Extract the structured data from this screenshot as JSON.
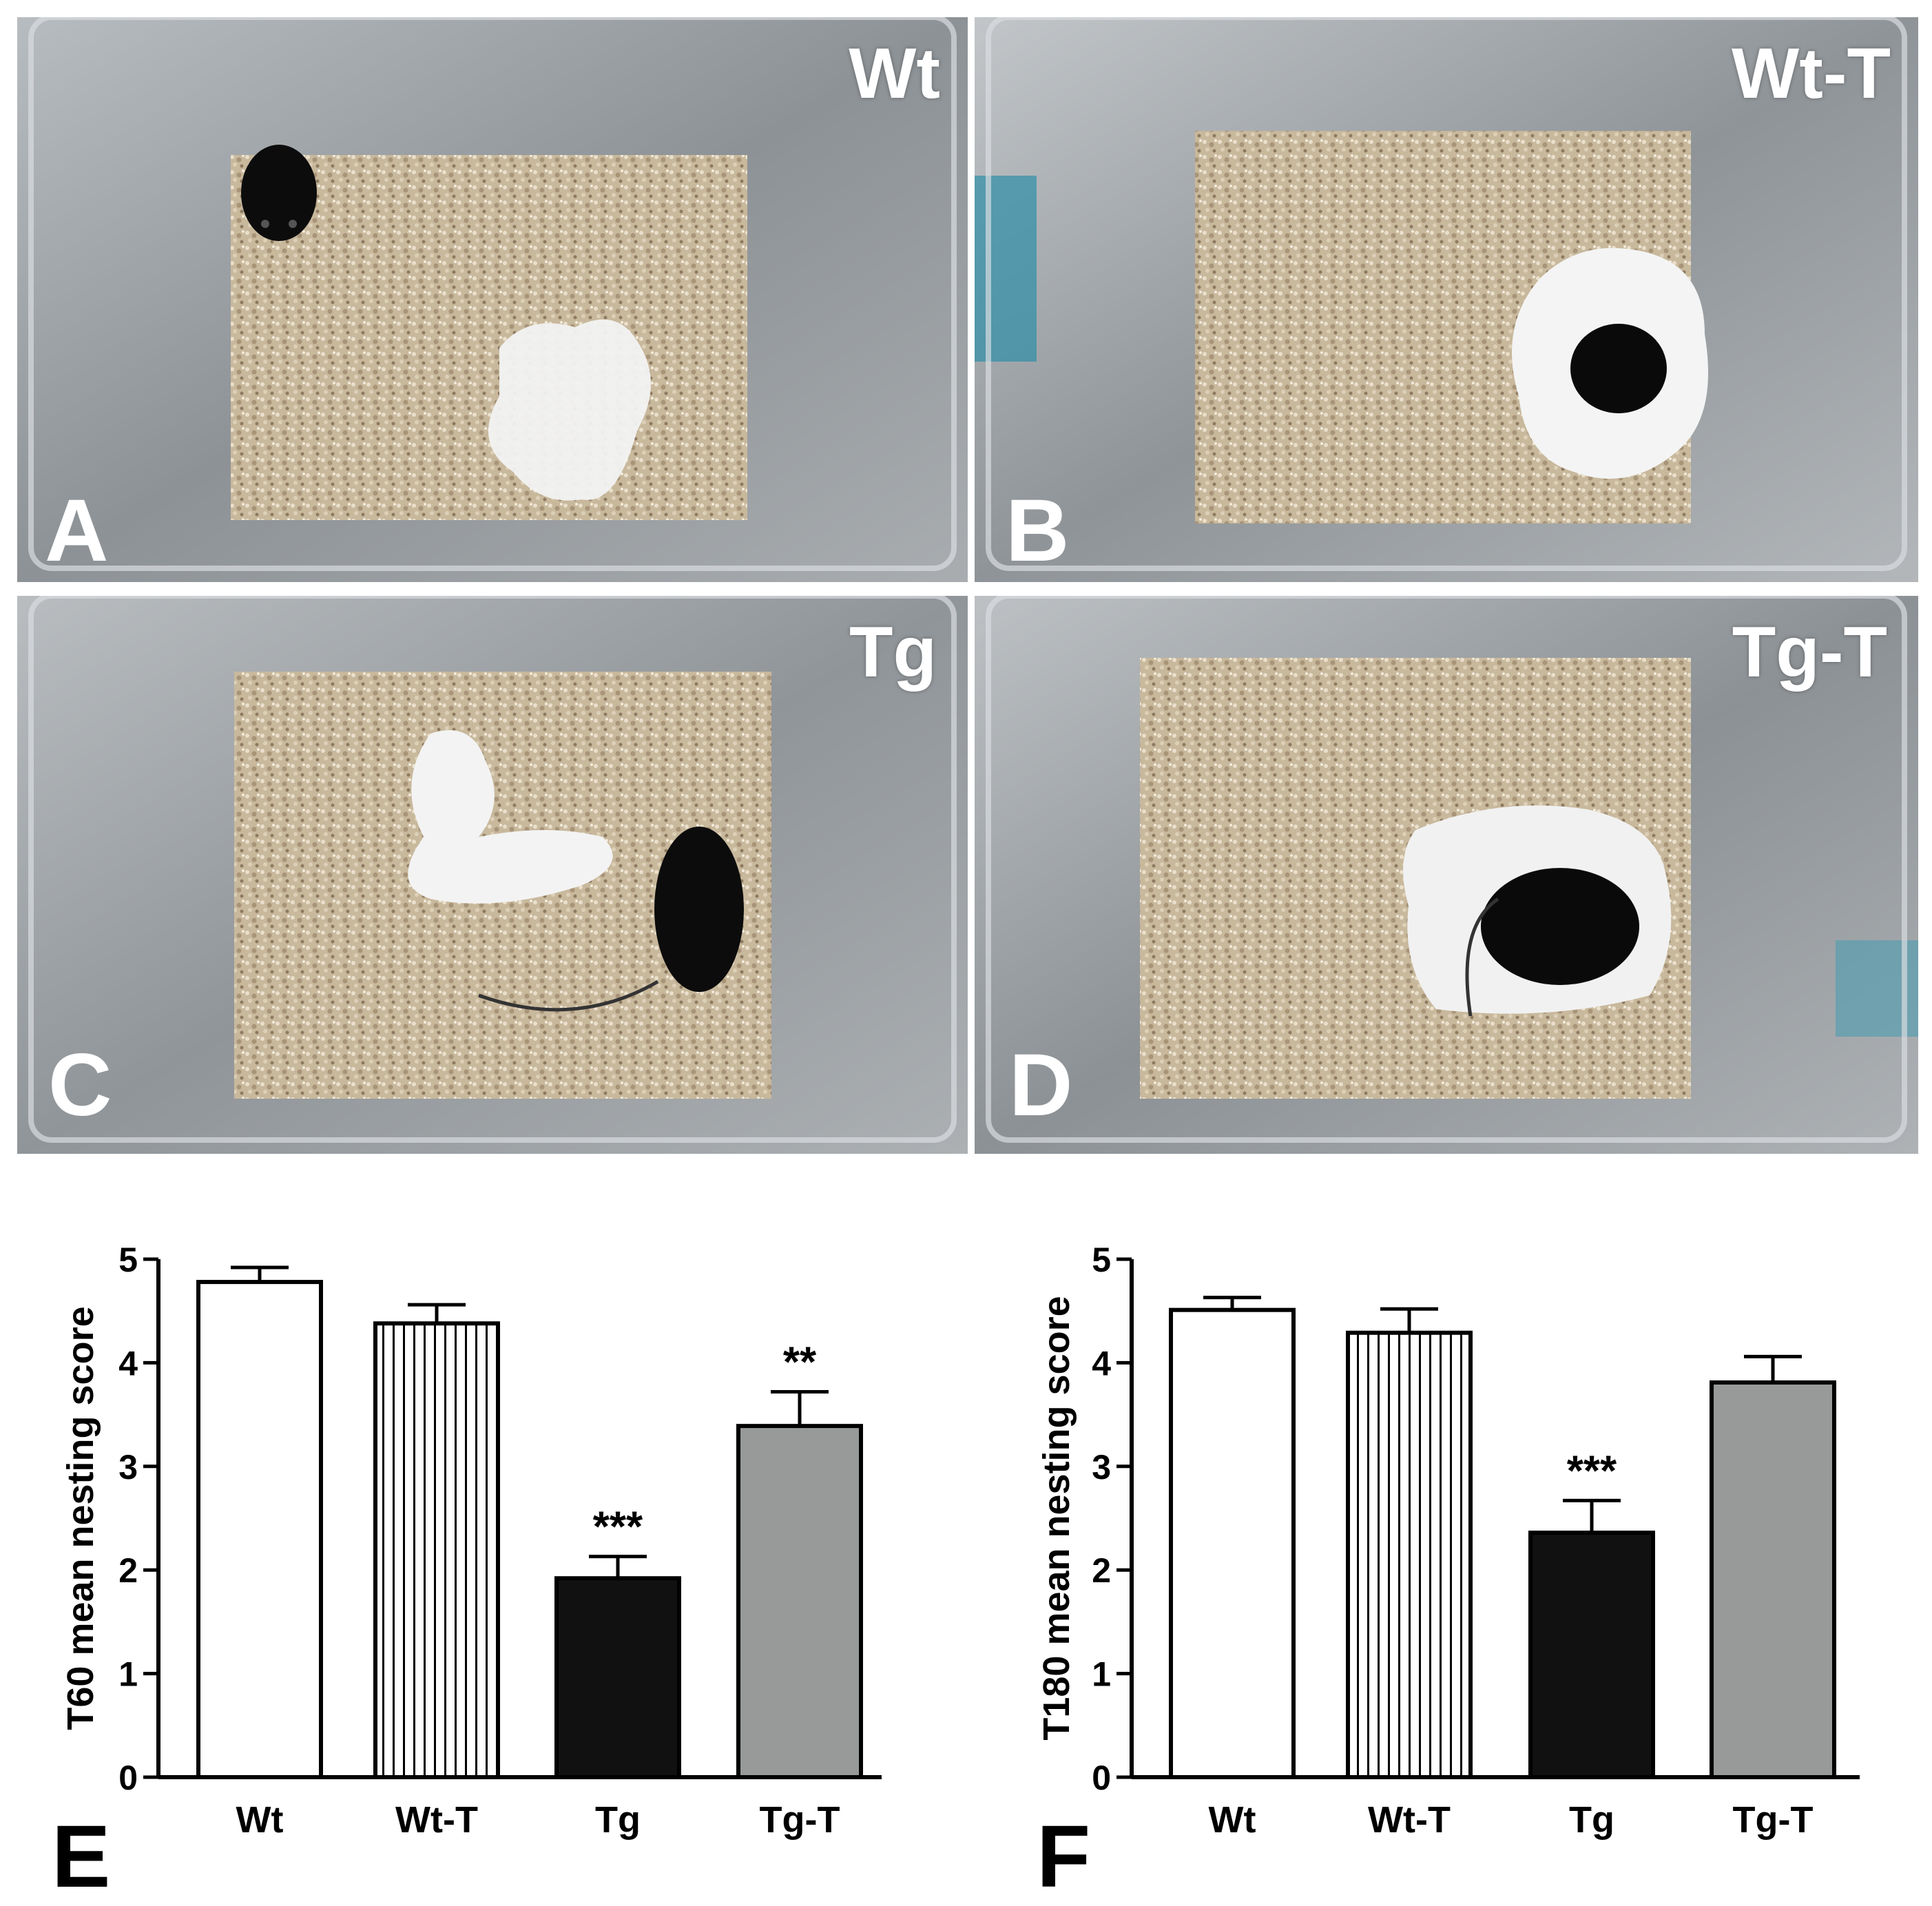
{
  "photos": [
    {
      "letter": "A",
      "group": "Wt"
    },
    {
      "letter": "B",
      "group": "Wt-T"
    },
    {
      "letter": "C",
      "group": "Tg"
    },
    {
      "letter": "D",
      "group": "Tg-T"
    }
  ],
  "chart_data": [
    {
      "panel": "E",
      "type": "bar",
      "ylabel": "T60 mean nesting score",
      "xlabel": "",
      "ylim": [
        0,
        5
      ],
      "yticks": [
        0,
        1,
        2,
        3,
        4,
        5
      ],
      "categories": [
        "Wt",
        "Wt-T",
        "Tg",
        "Tg-T"
      ],
      "values": [
        4.78,
        4.38,
        1.92,
        3.39
      ],
      "errors": [
        0.14,
        0.18,
        0.21,
        0.33
      ],
      "annotations": [
        "",
        "",
        "***",
        "**"
      ],
      "fills": [
        "white",
        "vertical-stripes",
        "#111111",
        "#979a99"
      ],
      "grid": false
    },
    {
      "panel": "F",
      "type": "bar",
      "ylabel": "T180 mean nesting score",
      "xlabel": "",
      "ylim": [
        0,
        5
      ],
      "yticks": [
        0,
        1,
        2,
        3,
        4,
        5
      ],
      "categories": [
        "Wt",
        "Wt-T",
        "Tg",
        "Tg-T"
      ],
      "values": [
        4.51,
        4.29,
        2.36,
        3.81
      ],
      "errors": [
        0.12,
        0.23,
        0.31,
        0.25
      ],
      "annotations": [
        "",
        "",
        "***",
        ""
      ],
      "fills": [
        "white",
        "vertical-stripes",
        "#111111",
        "#979a99"
      ],
      "grid": false
    }
  ]
}
